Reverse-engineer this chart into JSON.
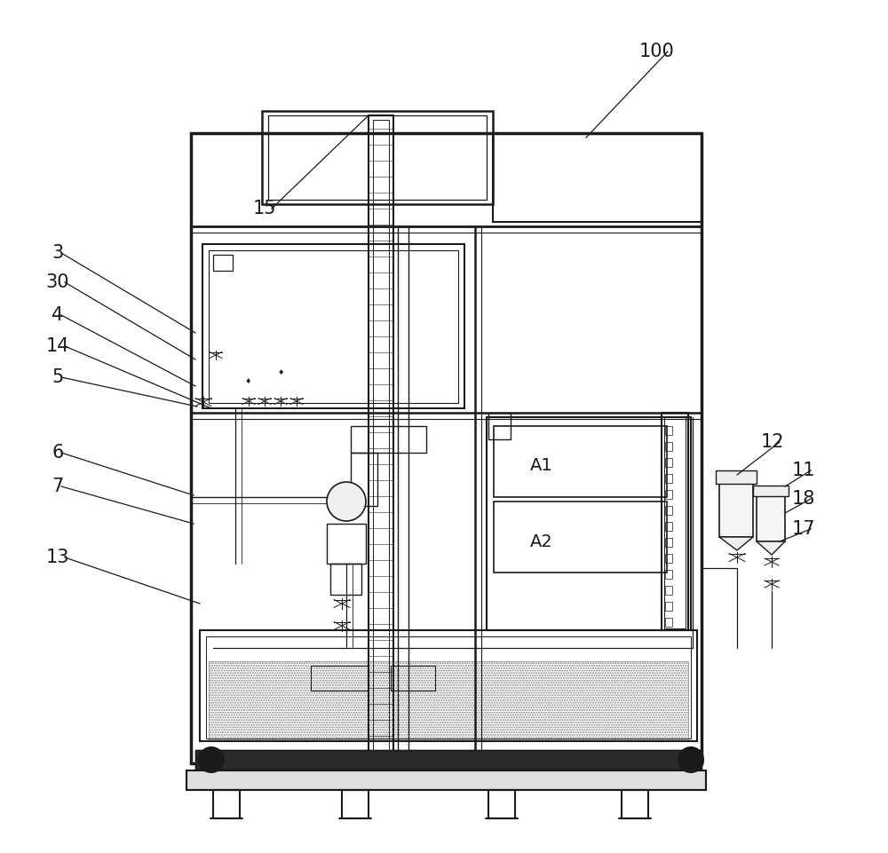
{
  "bg_color": "#ffffff",
  "line_color": "#1a1a1a",
  "label_color": "#000000",
  "figure_width": 10.0,
  "figure_height": 9.61,
  "dpi": 100
}
